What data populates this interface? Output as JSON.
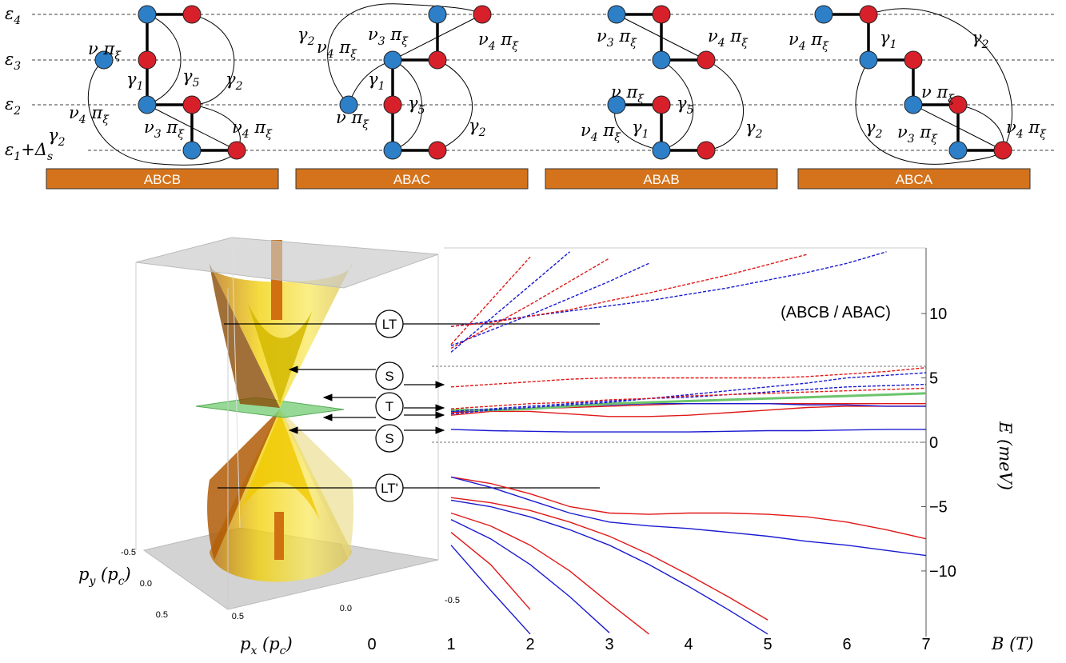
{
  "lattice": {
    "levels": [
      [
        "ε",
        "4"
      ],
      [
        "ε",
        "3"
      ],
      [
        "ε",
        "2"
      ],
      [
        "ε",
        "1",
        "+Δ",
        "s"
      ]
    ],
    "panels": [
      {
        "title": "ABCB",
        "labels": [
          [
            "ν π",
            "ξ"
          ],
          [
            "γ",
            "5"
          ],
          [
            "γ",
            "1"
          ],
          [
            "γ",
            "2"
          ],
          [
            "ν",
            "4",
            " π",
            "ξ"
          ],
          [
            "γ",
            "2"
          ],
          [
            "ν",
            "3",
            " π",
            "ξ"
          ],
          [
            "ν",
            "4",
            " π",
            "ξ"
          ]
        ]
      },
      {
        "title": "ABAC",
        "labels": [
          [
            "γ",
            "2"
          ],
          [
            "ν",
            "4",
            " π",
            "ξ"
          ],
          [
            "ν",
            "3",
            " π",
            "ξ"
          ],
          [
            "ν",
            "4",
            " π",
            "ξ"
          ],
          [
            "γ",
            "1"
          ],
          [
            "ν π",
            "ξ"
          ],
          [
            "γ",
            "5"
          ],
          [
            "γ",
            "2"
          ]
        ]
      },
      {
        "title": "ABAB",
        "labels": [
          [
            "ν",
            "3",
            " π",
            "ξ"
          ],
          [
            "ν",
            "4",
            " π",
            "ξ"
          ],
          [
            "ν π",
            "ξ"
          ],
          [
            "γ",
            "5"
          ],
          [
            "γ",
            "2"
          ],
          [
            "ν",
            "4",
            " π",
            "ξ"
          ],
          [
            "γ",
            "1"
          ]
        ]
      },
      {
        "title": "ABCA",
        "labels": [
          [
            "ν",
            "4",
            " π",
            "ξ"
          ],
          [
            "γ",
            "1"
          ],
          [
            "γ",
            "2"
          ],
          [
            "ν π",
            "ξ"
          ],
          [
            "γ",
            "2"
          ],
          [
            "ν",
            "3",
            " π",
            "ξ"
          ],
          [
            "ν",
            "4",
            " π",
            "ξ"
          ]
        ]
      }
    ]
  },
  "surface_plot": {
    "py_label": [
      "p",
      "y",
      " (p",
      "c",
      ")"
    ],
    "px_label": [
      "p",
      "x",
      " (p",
      "c",
      ")"
    ],
    "py_ticks": [
      {
        "value": -0.5,
        "label": "-0.5"
      },
      {
        "value": 0,
        "label": "0.0"
      },
      0.5
    ],
    "px_ticks": [
      0.5,
      {
        "value": 0,
        "label": "0.0"
      },
      {
        "value": -0.5,
        "label": "-0.5"
      }
    ]
  },
  "markers": [
    "LT",
    "S",
    "T",
    "S",
    "LT'"
  ],
  "chart_data": {
    "type": "line",
    "annotation": "(ABCB / ABAC)",
    "xlabel": "B (T)",
    "ylabel": "E (meV)",
    "x": [
      1,
      1.5,
      2,
      2.5,
      3,
      3.5,
      4,
      4.5,
      5,
      5.5,
      6,
      6.5,
      7
    ],
    "xlim": [
      0,
      7
    ],
    "xticks": [
      0,
      1,
      2,
      3,
      4,
      5,
      6,
      7
    ],
    "ylim": [
      -15.1,
      15.1
    ],
    "yticks": [
      10,
      5,
      0,
      {
        "value": -5,
        "label": "−5"
      },
      {
        "value": -10,
        "label": "−10"
      }
    ],
    "hlines": [
      0,
      5.9
    ],
    "series": [
      {
        "color": "#1a1ad0",
        "dash": false,
        "values": [
          1.0,
          0.9,
          0.85,
          0.8,
          0.8,
          0.8,
          0.8,
          0.85,
          0.9,
          0.9,
          0.95,
          1.0,
          1.0
        ]
      },
      {
        "color": "#e01818",
        "dash": false,
        "values": [
          2.1,
          2.4,
          2.4,
          2.2,
          2.0,
          2.0,
          2.1,
          2.3,
          2.5,
          2.7,
          2.8,
          2.8,
          2.8
        ]
      },
      {
        "color": "#e01818",
        "dash": false,
        "values": [
          2.3,
          2.5,
          2.6,
          2.7,
          2.8,
          2.9,
          3.0,
          3.0,
          3.0,
          3.0,
          3.0,
          3.0,
          3.0
        ]
      },
      {
        "color": "#1a1ad0",
        "dash": false,
        "values": [
          2.4,
          2.5,
          2.6,
          2.8,
          2.9,
          3.0,
          3.0,
          3.0,
          3.0,
          2.9,
          2.9,
          2.8,
          2.8
        ]
      },
      {
        "color": "#6cc46c",
        "dash": false,
        "line_width": 3,
        "values": [
          2.5,
          2.5,
          2.6,
          2.8,
          3.0,
          3.1,
          3.2,
          3.3,
          3.4,
          3.5,
          3.6,
          3.7,
          3.8
        ]
      },
      {
        "color": "#e01818",
        "dash": true,
        "values": [
          4.3,
          4.5,
          4.7,
          4.9,
          5.0,
          5.0,
          5.0,
          5.0,
          5.0,
          5.1,
          5.3,
          5.5,
          5.8
        ]
      },
      {
        "color": "#1a1ad0",
        "dash": true,
        "values": [
          2.2,
          2.5,
          2.7,
          2.9,
          3.1,
          3.4,
          3.7,
          4.0,
          4.3,
          4.6,
          5.0,
          5.2,
          5.4
        ]
      },
      {
        "color": "#1a1ad0",
        "dash": true,
        "values": [
          2.4,
          2.6,
          2.8,
          3.0,
          3.2,
          3.4,
          3.5,
          3.7,
          3.9,
          4.1,
          4.3,
          4.4,
          4.5
        ]
      },
      {
        "color": "#e01818",
        "dash": true,
        "values": [
          2.6,
          2.8,
          3.0,
          3.1,
          3.3,
          3.4,
          3.6,
          3.7,
          3.8,
          3.9,
          4.0,
          4.1,
          4.2
        ]
      },
      {
        "color": "#1a1ad0",
        "dash": true,
        "values": [
          9.0,
          9.4,
          9.8,
          10.2,
          10.6,
          11.0,
          11.5,
          12.0,
          12.6,
          13.2,
          13.9,
          14.8,
          null
        ]
      },
      {
        "color": "#e01818",
        "dash": true,
        "values": [
          9.0,
          9.3,
          9.8,
          10.3,
          11.0,
          11.6,
          12.3,
          13.0,
          13.8,
          14.6,
          null,
          null,
          null
        ]
      },
      {
        "color": "#1a1ad0",
        "dash": true,
        "values": [
          7.5,
          8.7,
          9.9,
          11.2,
          12.5,
          13.9,
          null,
          null,
          null,
          null,
          null,
          null,
          null
        ]
      },
      {
        "color": "#e01818",
        "dash": true,
        "values": [
          7.3,
          9.0,
          10.7,
          12.5,
          14.3,
          null,
          null,
          null,
          null,
          null,
          null,
          null,
          null
        ]
      },
      {
        "color": "#1a1ad0",
        "dash": true,
        "values": [
          7.0,
          9.6,
          12.2,
          14.8,
          null,
          null,
          null,
          null,
          null,
          null,
          null,
          null,
          null
        ]
      },
      {
        "color": "#e01818",
        "dash": true,
        "values": [
          7.6,
          11.0,
          14.4,
          null,
          null,
          null,
          null,
          null,
          null,
          null,
          null,
          null,
          null
        ]
      },
      {
        "color": "#e01818",
        "dash": false,
        "values": [
          -2.7,
          -3.2,
          -4.0,
          -5.0,
          -5.5,
          -5.6,
          -5.5,
          -5.5,
          -5.6,
          -5.8,
          -6.2,
          -6.8,
          -7.5
        ]
      },
      {
        "color": "#1a1ad0",
        "dash": false,
        "values": [
          -2.7,
          -3.5,
          -4.5,
          -5.5,
          -6.2,
          -6.5,
          -6.7,
          -7.0,
          -7.3,
          -7.7,
          -8.0,
          -8.4,
          -8.8
        ]
      },
      {
        "color": "#e01818",
        "dash": false,
        "values": [
          -4.3,
          -4.7,
          -5.3,
          -6.2,
          -7.3,
          -8.7,
          -10.3,
          -12.0,
          -13.8,
          null,
          null,
          null,
          null
        ]
      },
      {
        "color": "#1a1ad0",
        "dash": false,
        "values": [
          -4.5,
          -5.0,
          -5.8,
          -6.8,
          -8.0,
          -9.5,
          -11.2,
          -13.0,
          -14.9,
          null,
          null,
          null,
          null
        ]
      },
      {
        "color": "#e01818",
        "dash": false,
        "values": [
          -5.5,
          -6.5,
          -8.0,
          -10.0,
          -12.5,
          -14.9,
          null,
          null,
          null,
          null,
          null,
          null,
          null
        ]
      },
      {
        "color": "#1a1ad0",
        "dash": false,
        "values": [
          -6.0,
          -7.5,
          -9.5,
          -12.0,
          -14.8,
          null,
          null,
          null,
          null,
          null,
          null,
          null,
          null
        ]
      },
      {
        "color": "#e01818",
        "dash": false,
        "values": [
          -7.0,
          -9.5,
          -13.0,
          null,
          null,
          null,
          null,
          null,
          null,
          null,
          null,
          null,
          null
        ]
      },
      {
        "color": "#1a1ad0",
        "dash": false,
        "values": [
          -8.0,
          -11.5,
          -14.9,
          null,
          null,
          null,
          null,
          null,
          null,
          null,
          null,
          null,
          null
        ]
      }
    ]
  }
}
